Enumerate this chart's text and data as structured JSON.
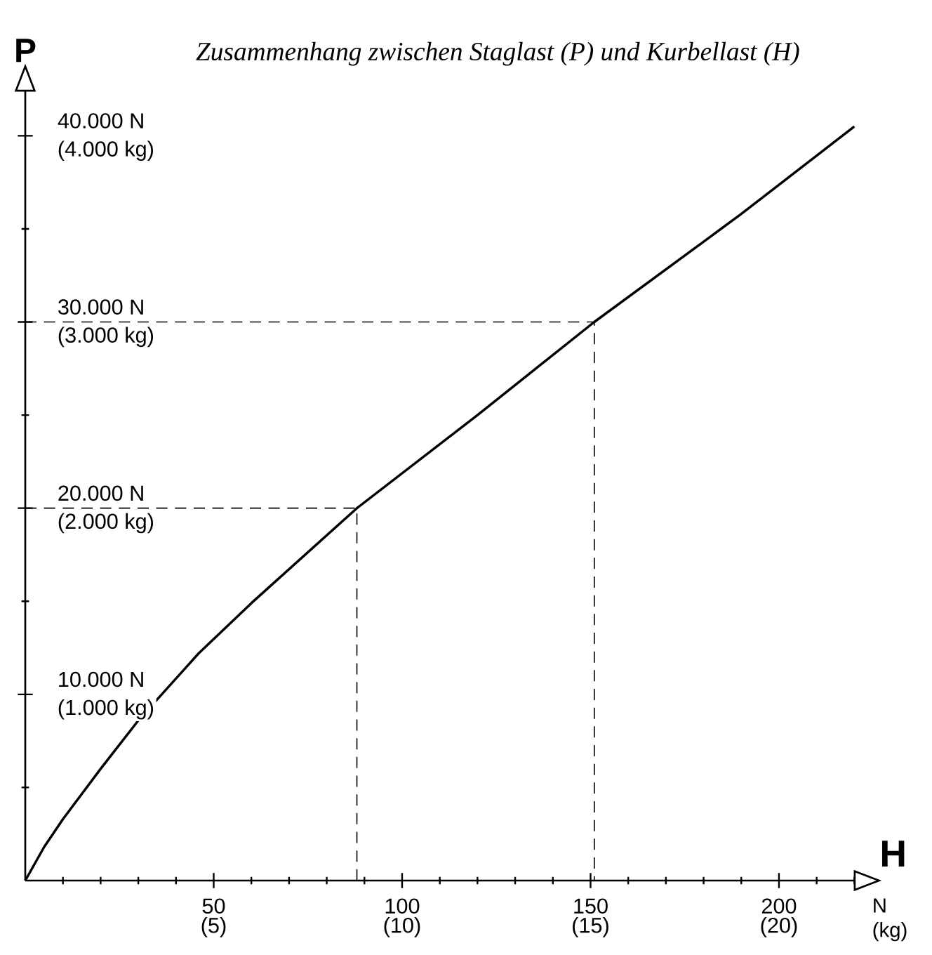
{
  "chart_data": {
    "type": "line",
    "title": "Zusammenhang zwischen Staglast (P) und Kurbellast (H)",
    "xlabel": "H",
    "ylabel": "P",
    "annotations": [
      "N (kg)"
    ],
    "xlim": [
      0,
      220
    ],
    "ylim": [
      0,
      42400
    ],
    "xticks": [
      {
        "value": 10,
        "label": null
      },
      {
        "value": 20,
        "label": null
      },
      {
        "value": 30,
        "label": null
      },
      {
        "value": 40,
        "label": null
      },
      50,
      {
        "value": 60,
        "label": null
      },
      {
        "value": 70,
        "label": null
      },
      {
        "value": 80,
        "label": null
      },
      {
        "value": 90,
        "label": null
      },
      100,
      {
        "value": 110,
        "label": null
      },
      {
        "value": 120,
        "label": null
      },
      {
        "value": 130,
        "label": null
      },
      {
        "value": 140,
        "label": null
      },
      150,
      {
        "value": 160,
        "label": null
      },
      {
        "value": 170,
        "label": null
      },
      {
        "value": 180,
        "label": null
      },
      {
        "value": 190,
        "label": null
      },
      200,
      {
        "value": 210,
        "label": null
      },
      {
        "value": 220,
        "label": null
      }
    ],
    "x2lim": [
      0,
      22
    ],
    "x2ticks": [
      {
        "value": 5,
        "label": "(5)"
      },
      {
        "value": 10,
        "label": "(10)"
      },
      {
        "value": 15,
        "label": "(15)"
      },
      {
        "value": 20,
        "label": "(20)"
      }
    ],
    "yticks": [
      {
        "value": 5000,
        "label": null
      },
      {
        "value": 10000,
        "label": "10.000 N"
      },
      {
        "value": 15000,
        "label": null
      },
      {
        "value": 20000,
        "label": "20.000 N"
      },
      {
        "value": 25000,
        "label": null
      },
      {
        "value": 30000,
        "label": "30.000 N"
      },
      {
        "value": 35000,
        "label": null
      },
      {
        "value": 40000,
        "label": "40.000 N"
      }
    ],
    "y2lim": [
      0,
      4240
    ],
    "y2ticks": [
      {
        "value": 1000,
        "label": "(1.000 kg)"
      },
      {
        "value": 2000,
        "label": "(2.000 kg)"
      },
      {
        "value": 3000,
        "label": "(3.000 kg)"
      },
      {
        "value": 4000,
        "label": "(4.000 kg)"
      }
    ],
    "series": [
      {
        "type": "line",
        "color": "#000000",
        "line_style": "solid",
        "x": [
          0,
          5,
          10,
          20,
          30,
          46,
          60,
          88,
          120,
          151,
          190,
          220
        ],
        "values": [
          0,
          1800,
          3300,
          6000,
          8600,
          12200,
          14900,
          20000,
          25000,
          30000,
          35800,
          40500
        ]
      },
      {
        "type": "line",
        "color": "#000000",
        "line_style": "dashed",
        "x": [
          0,
          88,
          88
        ],
        "values": [
          20000,
          20000,
          0
        ]
      },
      {
        "type": "line",
        "color": "#000000",
        "line_style": "dashed",
        "x": [
          0,
          151,
          151
        ],
        "values": [
          30000,
          30000,
          0
        ]
      }
    ]
  }
}
